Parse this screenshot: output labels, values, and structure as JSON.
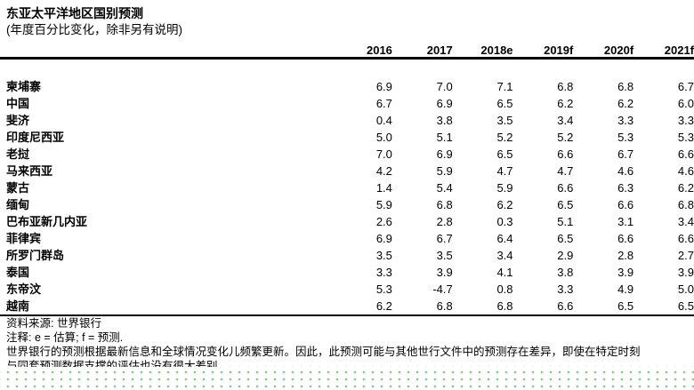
{
  "title": "东亚太平洋地区国别预测",
  "subtitle": "(年度百分比变化，除非另有说明)",
  "table": {
    "country_header": "",
    "year_headers": [
      "2016",
      "2017",
      "2018e",
      "2019f",
      "2020f",
      "2021f"
    ],
    "rows": [
      {
        "country": "柬埔寨",
        "values": [
          "6.9",
          "7.0",
          "7.1",
          "6.8",
          "6.8",
          "6.7"
        ]
      },
      {
        "country": "中国",
        "values": [
          "6.7",
          "6.9",
          "6.5",
          "6.2",
          "6.2",
          "6.0"
        ]
      },
      {
        "country": "斐济",
        "values": [
          "0.4",
          "3.8",
          "3.5",
          "3.4",
          "3.3",
          "3.3"
        ]
      },
      {
        "country": "印度尼西亚",
        "values": [
          "5.0",
          "5.1",
          "5.2",
          "5.2",
          "5.3",
          "5.3"
        ]
      },
      {
        "country": "老挝",
        "values": [
          "7.0",
          "6.9",
          "6.5",
          "6.6",
          "6.7",
          "6.6"
        ]
      },
      {
        "country": "马来西亚",
        "values": [
          "4.2",
          "5.9",
          "4.7",
          "4.7",
          "4.6",
          "4.6"
        ]
      },
      {
        "country": "蒙古",
        "values": [
          "1.4",
          "5.4",
          "5.9",
          "6.6",
          "6.3",
          "6.2"
        ]
      },
      {
        "country": "缅甸",
        "values": [
          "5.9",
          "6.8",
          "6.2",
          "6.5",
          "6.6",
          "6.8"
        ]
      },
      {
        "country": "巴布亚新几内亚",
        "values": [
          "2.6",
          "2.8",
          "0.3",
          "5.1",
          "3.1",
          "3.4"
        ]
      },
      {
        "country": "菲律宾",
        "values": [
          "6.9",
          "6.7",
          "6.4",
          "6.5",
          "6.6",
          "6.6"
        ]
      },
      {
        "country": "所罗门群岛",
        "values": [
          "3.5",
          "3.5",
          "3.4",
          "2.9",
          "2.8",
          "2.7"
        ]
      },
      {
        "country": "泰国",
        "values": [
          "3.3",
          "3.9",
          "4.1",
          "3.8",
          "3.9",
          "3.9"
        ]
      },
      {
        "country": "东帝汶",
        "values": [
          "5.3",
          "-4.7",
          "0.8",
          "3.3",
          "4.9",
          "5.0"
        ]
      },
      {
        "country": "越南",
        "values": [
          "6.2",
          "6.8",
          "6.8",
          "6.6",
          "6.5",
          "6.5"
        ]
      }
    ]
  },
  "footnotes": {
    "source": "资料来源: 世界银行",
    "note": "注释: e = 估算; f = 预测.",
    "disclaimer_line1": "世界银行的预测根据最新信息和全球情况变化儿频繁更新。因此，此预测可能与其他世行文件中的预测存在差异，即使在特定时刻",
    "disclaimer_line2_clipped": "与同套预测数据支撑的评估也没有很大差别"
  },
  "colors": {
    "text": "#000000",
    "background": "#ffffff",
    "dot_green": "#7bc87b"
  }
}
